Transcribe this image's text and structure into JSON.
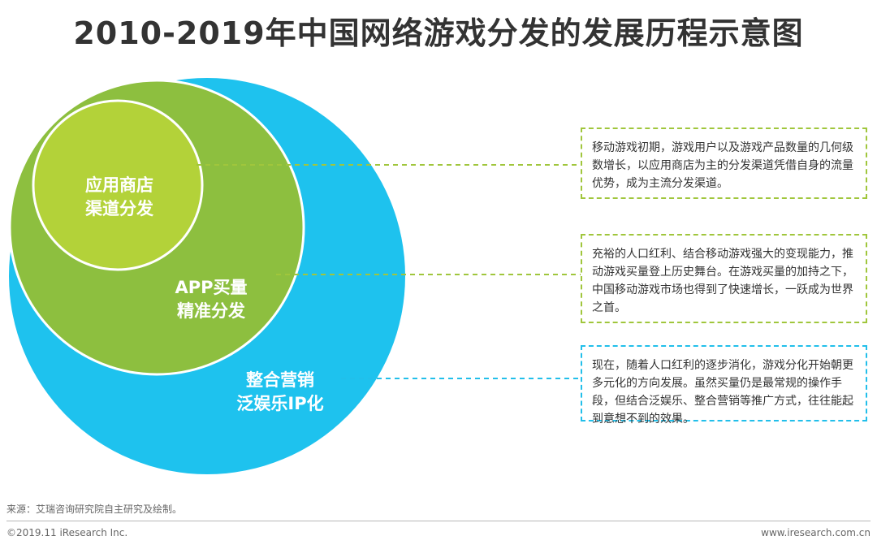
{
  "title": "2010-2019年中国网络游戏分发的发展历程示意图",
  "colors": {
    "outer_circle": "#1ec2ee",
    "middle_circle": "#8dbf3f",
    "inner_circle": "#b3d239",
    "green_dash": "#a0c63c",
    "blue_dash": "#22bfea"
  },
  "stages": [
    {
      "label_line1": "应用商店",
      "label_line2": "渠道分发",
      "description": "移动游戏初期，游戏用户以及游戏产品数量的几何级数增长，以应用商店为主的分发渠道凭借自身的流量优势，成为主流分发渠道。"
    },
    {
      "label_line1": "APP买量",
      "label_line2": "精准分发",
      "description": "充裕的人口红利、结合移动游戏强大的变现能力，推动游戏买量登上历史舞台。在游戏买量的加持之下，中国移动游戏市场也得到了快速增长，一跃成为世界之首。"
    },
    {
      "label_line1": "整合营销",
      "label_line2": "泛娱乐IP化",
      "description": "现在，随着人口红利的逐步消化，游戏分化开始朝更多元化的方向发展。虽然买量仍是最常规的操作手段，但结合泛娱乐、整合营销等推广方式，往往能起到意想不到的效果。"
    }
  ],
  "footer": {
    "source": "来源：艾瑞咨询研究院自主研究及绘制。",
    "copyright": "©2019.11 iResearch Inc.",
    "website": "www.iresearch.com.cn"
  }
}
